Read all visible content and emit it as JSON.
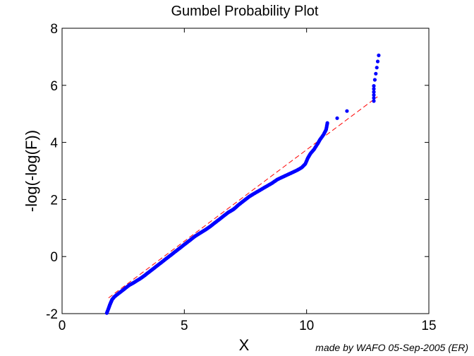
{
  "chart_data": {
    "type": "scatter",
    "title": "Gumbel Probability Plot",
    "xlabel": "X",
    "ylabel": "-log(-log(F))",
    "xlim": [
      0,
      15
    ],
    "ylim": [
      -2,
      8
    ],
    "xticks": [
      "0",
      "5",
      "10",
      "15"
    ],
    "yticks": [
      "-2",
      "0",
      "2",
      "4",
      "6",
      "8"
    ],
    "grid": false,
    "marker_color": "#0000ff",
    "fit_line_color": "#ff0000",
    "fit_line": {
      "x": [
        1.9,
        12.9
      ],
      "y": [
        -1.45,
        5.6
      ]
    },
    "points": [
      [
        1.83,
        -1.98
      ],
      [
        1.9,
        -1.82
      ],
      [
        1.95,
        -1.7
      ],
      [
        2.0,
        -1.6
      ],
      [
        2.05,
        -1.5
      ],
      [
        2.15,
        -1.4
      ],
      [
        2.3,
        -1.3
      ],
      [
        2.45,
        -1.2
      ],
      [
        2.6,
        -1.1
      ],
      [
        2.75,
        -1.0
      ],
      [
        2.9,
        -0.93
      ],
      [
        3.05,
        -0.85
      ],
      [
        3.2,
        -0.77
      ],
      [
        3.35,
        -0.68
      ],
      [
        3.5,
        -0.58
      ],
      [
        3.65,
        -0.48
      ],
      [
        3.8,
        -0.38
      ],
      [
        3.95,
        -0.28
      ],
      [
        4.1,
        -0.18
      ],
      [
        4.25,
        -0.08
      ],
      [
        4.4,
        0.02
      ],
      [
        4.55,
        0.12
      ],
      [
        4.7,
        0.22
      ],
      [
        4.85,
        0.32
      ],
      [
        5.0,
        0.42
      ],
      [
        5.15,
        0.52
      ],
      [
        5.3,
        0.62
      ],
      [
        5.45,
        0.72
      ],
      [
        5.6,
        0.8
      ],
      [
        5.75,
        0.88
      ],
      [
        5.9,
        0.96
      ],
      [
        6.05,
        1.05
      ],
      [
        6.2,
        1.15
      ],
      [
        6.35,
        1.25
      ],
      [
        6.5,
        1.35
      ],
      [
        6.65,
        1.45
      ],
      [
        6.8,
        1.55
      ],
      [
        6.9,
        1.6
      ],
      [
        7.0,
        1.65
      ],
      [
        7.1,
        1.72
      ],
      [
        7.2,
        1.8
      ],
      [
        7.35,
        1.9
      ],
      [
        7.5,
        2.0
      ],
      [
        7.65,
        2.1
      ],
      [
        7.8,
        2.18
      ],
      [
        8.0,
        2.28
      ],
      [
        8.2,
        2.38
      ],
      [
        8.4,
        2.48
      ],
      [
        8.6,
        2.58
      ],
      [
        8.8,
        2.7
      ],
      [
        9.0,
        2.78
      ],
      [
        9.2,
        2.86
      ],
      [
        9.4,
        2.94
      ],
      [
        9.6,
        3.02
      ],
      [
        9.8,
        3.12
      ],
      [
        9.95,
        3.25
      ],
      [
        10.05,
        3.45
      ],
      [
        10.15,
        3.6
      ],
      [
        10.3,
        3.75
      ],
      [
        10.45,
        3.95
      ],
      [
        10.55,
        4.1
      ],
      [
        10.7,
        4.28
      ],
      [
        10.8,
        4.45
      ],
      [
        10.85,
        4.68
      ],
      [
        11.25,
        4.85
      ],
      [
        11.65,
        5.1
      ],
      [
        12.75,
        5.45
      ],
      [
        12.75,
        5.98
      ],
      [
        12.95,
        7.05
      ]
    ]
  },
  "credit": "made by WAFO 05-Sep-2005 (ER)"
}
